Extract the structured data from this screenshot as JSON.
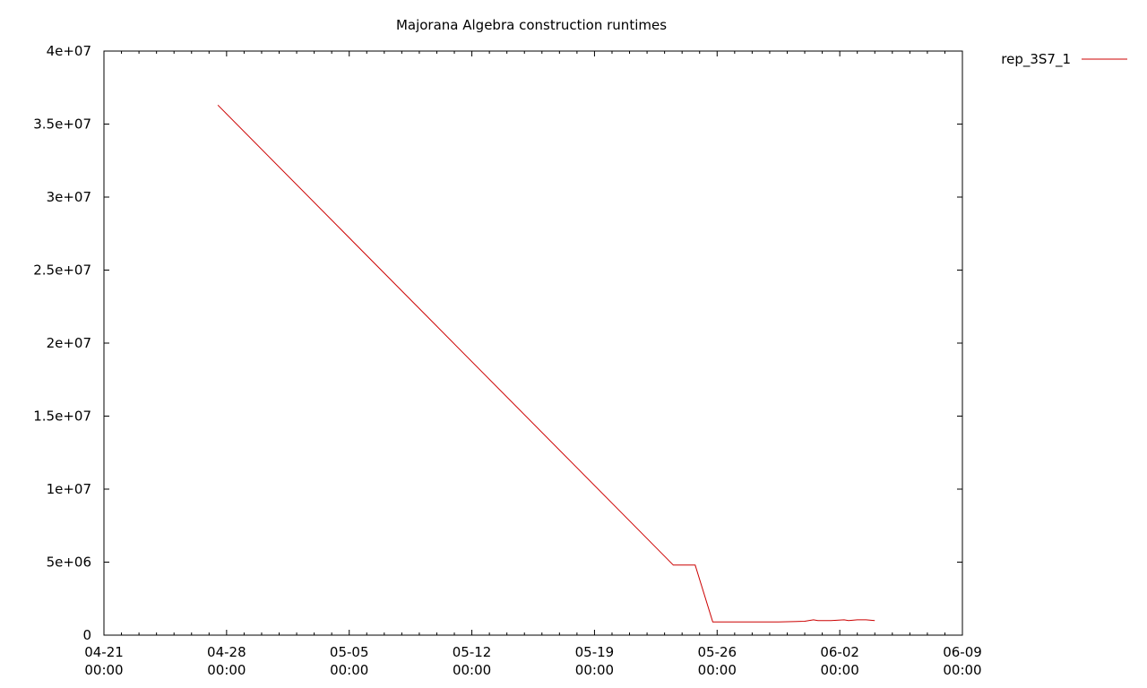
{
  "chart_data": {
    "type": "line",
    "title": "Majorana Algebra construction runtimes",
    "xlabel": "",
    "ylabel": "",
    "x_axis_type": "time",
    "xlim": [
      "04-21 00:00",
      "06-09 00:00"
    ],
    "ylim": [
      0,
      40000000
    ],
    "x_ticks": [
      {
        "date": "04-21",
        "time": "00:00"
      },
      {
        "date": "04-28",
        "time": "00:00"
      },
      {
        "date": "05-05",
        "time": "00:00"
      },
      {
        "date": "05-12",
        "time": "00:00"
      },
      {
        "date": "05-19",
        "time": "00:00"
      },
      {
        "date": "05-26",
        "time": "00:00"
      },
      {
        "date": "06-02",
        "time": "00:00"
      },
      {
        "date": "06-09",
        "time": "00:00"
      }
    ],
    "y_ticks": [
      {
        "value": 0,
        "label": "0"
      },
      {
        "value": 5000000,
        "label": "5e+06"
      },
      {
        "value": 10000000,
        "label": "1e+07"
      },
      {
        "value": 15000000,
        "label": "1.5e+07"
      },
      {
        "value": 20000000,
        "label": "2e+07"
      },
      {
        "value": 25000000,
        "label": "2.5e+07"
      },
      {
        "value": 30000000,
        "label": "3e+07"
      },
      {
        "value": 35000000,
        "label": "3.5e+07"
      },
      {
        "value": 40000000,
        "label": "4e+07"
      }
    ],
    "grid": false,
    "legend_position": "top-right, outside plot",
    "series": [
      {
        "name": "rep_3S7_1",
        "color": "#cc0000",
        "x": [
          "04-27 12:00",
          "05-23 12:00",
          "05-24 18:00",
          "05-25 18:00",
          "05-29 12:00",
          "05-31 00:00",
          "05-31 12:00",
          "05-31 18:00",
          "06-01 12:00",
          "06-02 06:00",
          "06-02 12:00",
          "06-03 00:00",
          "06-03 12:00",
          "06-04 00:00"
        ],
        "values": [
          36300000,
          4800000,
          4800000,
          900000,
          900000,
          950000,
          1050000,
          1000000,
          1000000,
          1050000,
          1000000,
          1050000,
          1050000,
          1000000
        ]
      }
    ]
  }
}
